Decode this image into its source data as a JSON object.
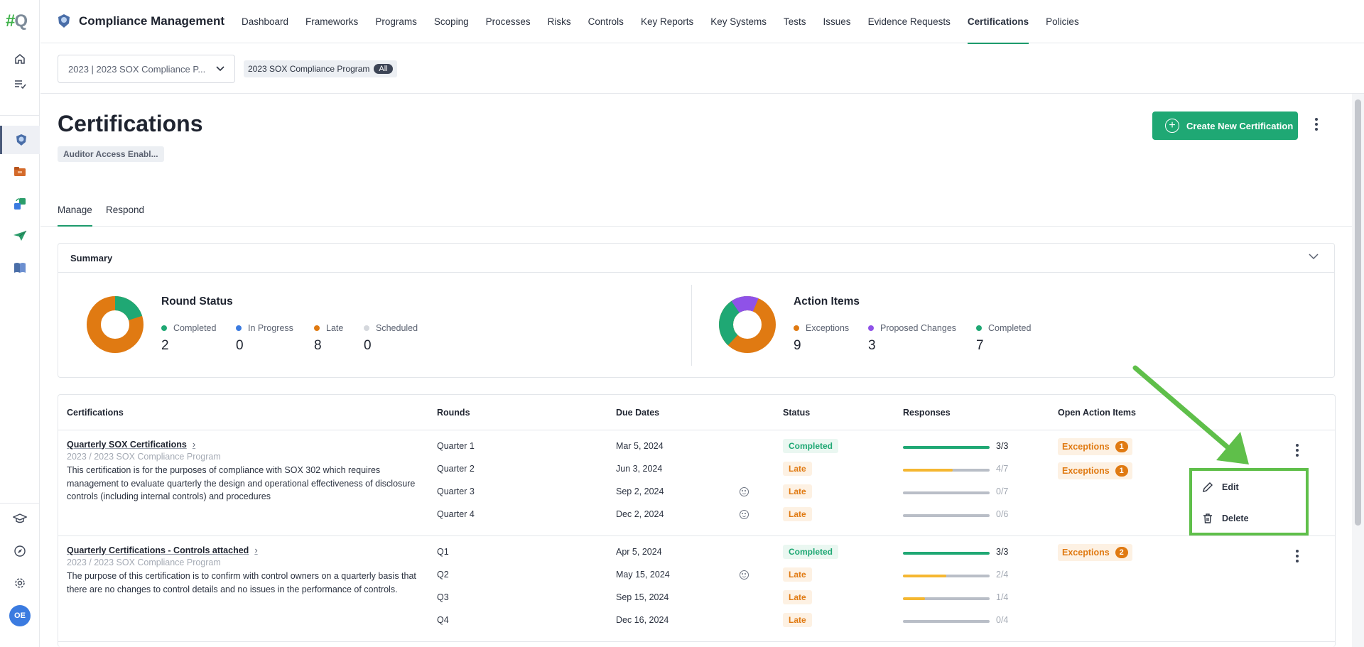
{
  "app": {
    "logo_text": "#Q",
    "title": "Compliance Management",
    "avatar_initials": "OE"
  },
  "nav": {
    "items": [
      "Dashboard",
      "Frameworks",
      "Programs",
      "Scoping",
      "Processes",
      "Risks",
      "Controls",
      "Key Reports",
      "Key Systems",
      "Tests",
      "Issues",
      "Evidence Requests",
      "Certifications",
      "Policies"
    ],
    "active": "Certifications"
  },
  "rail": {
    "icons": [
      "home-icon",
      "task-list-icon",
      "shield-badge-icon",
      "folder-icon",
      "sync-boxes-icon",
      "send-icon",
      "book-icon",
      "graduation-cap-icon",
      "compass-icon",
      "gear-icon"
    ],
    "active": "shield-badge-icon"
  },
  "filter": {
    "program_select": "2023 | 2023 SOX Compliance P...",
    "chip_label": "2023 SOX Compliance Program",
    "chip_pill": "All"
  },
  "header": {
    "title": "Certifications",
    "access_badge": "Auditor Access Enabl...",
    "create_button": "Create New Certification"
  },
  "tabs": {
    "items": [
      "Manage",
      "Respond"
    ],
    "active": "Manage"
  },
  "summary": {
    "title": "Summary",
    "round_status": {
      "title": "Round Status",
      "items": [
        {
          "label": "Completed",
          "value": "2",
          "color": "#1fa874"
        },
        {
          "label": "In Progress",
          "value": "0",
          "color": "#3b7be0"
        },
        {
          "label": "Late",
          "value": "8",
          "color": "#e07a12"
        },
        {
          "label": "Scheduled",
          "value": "0",
          "color": "#d5d8dd"
        }
      ]
    },
    "action_items": {
      "title": "Action Items",
      "items": [
        {
          "label": "Exceptions",
          "value": "9",
          "color": "#e07a12"
        },
        {
          "label": "Proposed Changes",
          "value": "3",
          "color": "#8f52e8"
        },
        {
          "label": "Completed",
          "value": "7",
          "color": "#1fa874"
        }
      ]
    }
  },
  "table": {
    "headers": [
      "Certifications",
      "Rounds",
      "Due Dates",
      "Status",
      "Responses",
      "Open Action Items"
    ],
    "rows": [
      {
        "title": "Quarterly SOX Certifications",
        "program": "2023 / 2023 SOX Compliance Program",
        "description": "This certification is for the purposes of compliance with SOX 302 which requires management to evaluate quarterly the design and operational effectiveness of disclosure controls (including internal controls) and procedures",
        "rounds": [
          {
            "name": "Quarter 1",
            "due": "Mar 5, 2024",
            "status": "Completed",
            "responses": "3/3",
            "fill": 1.0,
            "emoji": false
          },
          {
            "name": "Quarter 2",
            "due": "Jun 3, 2024",
            "status": "Late",
            "responses": "4/7",
            "fill": 0.57,
            "emoji": false
          },
          {
            "name": "Quarter 3",
            "due": "Sep 2, 2024",
            "status": "Late",
            "responses": "0/7",
            "fill": 0,
            "emoji": true
          },
          {
            "name": "Quarter 4",
            "due": "Dec 2, 2024",
            "status": "Late",
            "responses": "0/6",
            "fill": 0,
            "emoji": true
          }
        ],
        "action_items": [
          {
            "label": "Exceptions",
            "count": "1"
          },
          {
            "label": "Exceptions",
            "count": "1"
          }
        ]
      },
      {
        "title": "Quarterly Certifications - Controls attached",
        "program": "2023 / 2023 SOX Compliance Program",
        "description": "The purpose of this certification is to confirm with control owners on a quarterly basis that there are no changes to control details and no issues in the performance of controls.",
        "rounds": [
          {
            "name": "Q1",
            "due": "Apr 5, 2024",
            "status": "Completed",
            "responses": "3/3",
            "fill": 1.0,
            "emoji": false
          },
          {
            "name": "Q2",
            "due": "May 15, 2024",
            "status": "Late",
            "responses": "2/4",
            "fill": 0.5,
            "emoji": true
          },
          {
            "name": "Q3",
            "due": "Sep 15, 2024",
            "status": "Late",
            "responses": "1/4",
            "fill": 0.25,
            "emoji": false
          },
          {
            "name": "Q4",
            "due": "Dec 16, 2024",
            "status": "Late",
            "responses": "0/4",
            "fill": 0,
            "emoji": false
          }
        ],
        "action_items": [
          {
            "label": "Exceptions",
            "count": "2"
          }
        ]
      }
    ]
  },
  "row_menu": {
    "items": [
      {
        "label": "Edit",
        "icon": "pencil-icon"
      },
      {
        "label": "Delete",
        "icon": "trash-icon"
      }
    ]
  },
  "colors": {
    "accent": "#1fa874",
    "late": "#e07a12",
    "progress_partial": "#f5b731",
    "annotation": "#5fbf4a"
  }
}
